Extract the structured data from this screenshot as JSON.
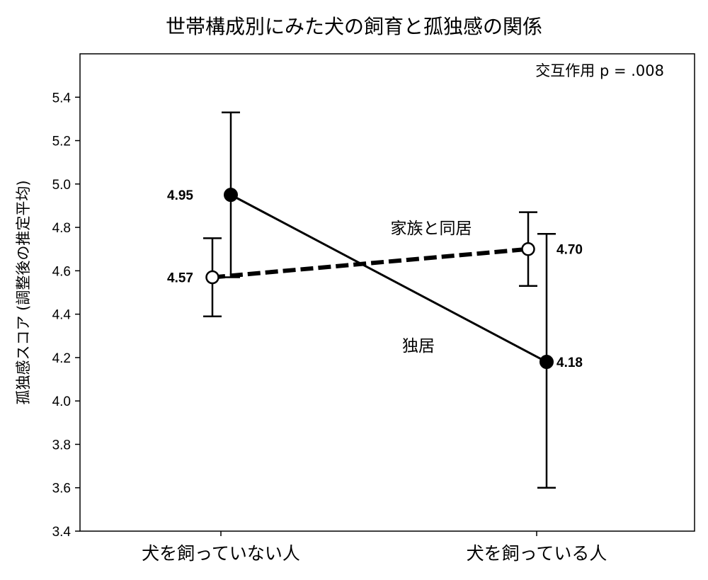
{
  "chart_data": {
    "type": "line",
    "title": "世帯構成別にみた犬の飼育と孤独感の関係",
    "xlabel": "",
    "ylabel": "孤独感スコア (調整後の推定平均)",
    "categories": [
      "犬を飼っていない人",
      "犬を飼っている人"
    ],
    "ylim": [
      3.4,
      5.6
    ],
    "yticks": [
      "3.4",
      "3.6",
      "3.8",
      "4.0",
      "4.2",
      "4.4",
      "4.6",
      "4.8",
      "5.0",
      "5.2",
      "5.4"
    ],
    "grid": false,
    "annotation": "交互作用 p = .008",
    "series": [
      {
        "name": "独居",
        "values": [
          4.95,
          4.18
        ],
        "ci_low": [
          4.57,
          3.6
        ],
        "ci_high": [
          5.33,
          4.77
        ],
        "value_labels": [
          "4.95",
          "4.18"
        ],
        "line_style": "solid",
        "marker": "filled-circle",
        "color": "#000000"
      },
      {
        "name": "家族と同居",
        "values": [
          4.57,
          4.7
        ],
        "ci_low": [
          4.39,
          4.53
        ],
        "ci_high": [
          4.75,
          4.87
        ],
        "value_labels": [
          "4.57",
          "4.70"
        ],
        "line_style": "dashed",
        "marker": "open-circle",
        "color": "#000000"
      }
    ]
  }
}
